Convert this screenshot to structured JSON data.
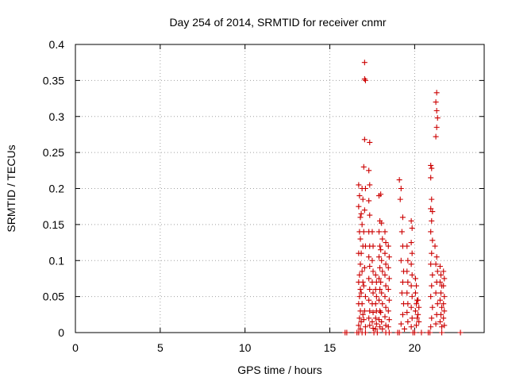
{
  "chart_data": {
    "type": "scatter",
    "title": "Day 254 of 2014, SRMTID for receiver cnmr",
    "xlabel": "GPS time / hours",
    "ylabel": "SRMTID / TECUs",
    "xlim": [
      0,
      24.1
    ],
    "ylim": [
      0,
      0.4
    ],
    "xticks": [
      0,
      5,
      10,
      15,
      20
    ],
    "xtick_labels": [
      "0",
      "5",
      "10",
      "15",
      "20"
    ],
    "yticks": [
      0,
      0.05,
      0.1,
      0.15,
      0.2,
      0.25,
      0.3,
      0.35,
      0.4
    ],
    "ytick_labels": [
      "0",
      "0.05",
      "0.1",
      "0.15",
      "0.2",
      "0.25",
      "0.3",
      "0.35",
      "0.4"
    ],
    "grid": true,
    "legend": "none",
    "marker": "plus",
    "series": [
      {
        "color": "#cc0000",
        "points": [
          [
            15.9,
            0.0
          ],
          [
            16.0,
            0.0
          ],
          [
            16.6,
            0.0
          ],
          [
            16.7,
            0.0
          ],
          [
            16.9,
            0.0
          ],
          [
            17.1,
            0.0
          ],
          [
            17.6,
            0.0
          ],
          [
            17.8,
            0.0
          ],
          [
            18.3,
            0.0
          ],
          [
            18.5,
            0.0
          ],
          [
            19.0,
            0.0
          ],
          [
            19.1,
            0.0
          ],
          [
            19.9,
            0.0
          ],
          [
            20.0,
            0.0
          ],
          [
            20.4,
            0.0
          ],
          [
            20.8,
            0.0
          ],
          [
            20.9,
            0.0
          ],
          [
            21.6,
            0.0
          ],
          [
            22.7,
            0.0
          ],
          [
            16.7,
            0.205
          ],
          [
            16.75,
            0.19
          ],
          [
            16.7,
            0.175
          ],
          [
            16.8,
            0.16
          ],
          [
            16.75,
            0.14
          ],
          [
            16.8,
            0.13
          ],
          [
            16.7,
            0.11
          ],
          [
            16.8,
            0.095
          ],
          [
            16.75,
            0.08
          ],
          [
            16.7,
            0.07
          ],
          [
            16.8,
            0.06
          ],
          [
            16.75,
            0.05
          ],
          [
            16.7,
            0.04
          ],
          [
            16.8,
            0.03
          ],
          [
            16.75,
            0.02
          ],
          [
            16.7,
            0.01
          ],
          [
            16.8,
            0.005
          ],
          [
            16.9,
            0.2
          ],
          [
            16.95,
            0.185
          ],
          [
            16.85,
            0.165
          ],
          [
            16.9,
            0.15
          ],
          [
            16.95,
            0.12
          ],
          [
            16.85,
            0.11
          ],
          [
            16.9,
            0.085
          ],
          [
            16.95,
            0.07
          ],
          [
            16.85,
            0.055
          ],
          [
            16.9,
            0.04
          ],
          [
            16.95,
            0.025
          ],
          [
            16.85,
            0.015
          ],
          [
            17.05,
            0.375
          ],
          [
            17.05,
            0.352
          ],
          [
            17.1,
            0.35
          ],
          [
            17.05,
            0.268
          ],
          [
            17.0,
            0.23
          ],
          [
            17.1,
            0.2
          ],
          [
            17.05,
            0.17
          ],
          [
            17.0,
            0.14
          ],
          [
            17.1,
            0.12
          ],
          [
            17.05,
            0.09
          ],
          [
            17.0,
            0.065
          ],
          [
            17.1,
            0.05
          ],
          [
            17.05,
            0.03
          ],
          [
            17.0,
            0.018
          ],
          [
            17.1,
            0.008
          ],
          [
            17.35,
            0.264
          ],
          [
            17.3,
            0.225
          ],
          [
            17.35,
            0.205
          ],
          [
            17.3,
            0.183
          ],
          [
            17.35,
            0.163
          ],
          [
            17.3,
            0.14
          ],
          [
            17.35,
            0.12
          ],
          [
            17.3,
            0.105
          ],
          [
            17.35,
            0.092
          ],
          [
            17.3,
            0.075
          ],
          [
            17.35,
            0.06
          ],
          [
            17.3,
            0.045
          ],
          [
            17.35,
            0.03
          ],
          [
            17.3,
            0.02
          ],
          [
            17.35,
            0.01
          ],
          [
            17.5,
            0.14
          ],
          [
            17.55,
            0.12
          ],
          [
            17.5,
            0.1
          ],
          [
            17.55,
            0.085
          ],
          [
            17.5,
            0.07
          ],
          [
            17.55,
            0.055
          ],
          [
            17.5,
            0.04
          ],
          [
            17.55,
            0.028
          ],
          [
            17.5,
            0.015
          ],
          [
            17.55,
            0.006
          ],
          [
            17.7,
            0.08
          ],
          [
            17.75,
            0.07
          ],
          [
            17.7,
            0.06
          ],
          [
            17.75,
            0.05
          ],
          [
            17.7,
            0.04
          ],
          [
            17.75,
            0.03
          ],
          [
            17.7,
            0.02
          ],
          [
            17.75,
            0.012
          ],
          [
            17.7,
            0.005
          ],
          [
            17.9,
            0.19
          ],
          [
            17.95,
            0.155
          ],
          [
            17.9,
            0.14
          ],
          [
            17.95,
            0.12
          ],
          [
            17.9,
            0.105
          ],
          [
            17.95,
            0.09
          ],
          [
            17.9,
            0.075
          ],
          [
            17.95,
            0.06
          ],
          [
            17.9,
            0.045
          ],
          [
            17.95,
            0.03
          ],
          [
            17.9,
            0.018
          ],
          [
            17.95,
            0.008
          ],
          [
            18.0,
            0.192
          ],
          [
            18.05,
            0.152
          ],
          [
            18.1,
            0.13
          ],
          [
            18.0,
            0.115
          ],
          [
            18.05,
            0.1
          ],
          [
            18.1,
            0.085
          ],
          [
            18.0,
            0.07
          ],
          [
            18.05,
            0.055
          ],
          [
            18.1,
            0.04
          ],
          [
            18.0,
            0.028
          ],
          [
            18.05,
            0.015
          ],
          [
            18.1,
            0.005
          ],
          [
            18.25,
            0.14
          ],
          [
            18.3,
            0.125
          ],
          [
            18.25,
            0.11
          ],
          [
            18.3,
            0.095
          ],
          [
            18.25,
            0.08
          ],
          [
            18.3,
            0.065
          ],
          [
            18.25,
            0.05
          ],
          [
            18.3,
            0.035
          ],
          [
            18.25,
            0.022
          ],
          [
            18.3,
            0.01
          ],
          [
            18.45,
            0.12
          ],
          [
            18.5,
            0.105
          ],
          [
            18.45,
            0.09
          ],
          [
            18.5,
            0.075
          ],
          [
            18.45,
            0.06
          ],
          [
            18.5,
            0.045
          ],
          [
            18.45,
            0.03
          ],
          [
            18.5,
            0.018
          ],
          [
            18.45,
            0.008
          ],
          [
            19.1,
            0.212
          ],
          [
            19.2,
            0.2
          ],
          [
            19.15,
            0.185
          ],
          [
            19.3,
            0.16
          ],
          [
            19.25,
            0.14
          ],
          [
            19.3,
            0.12
          ],
          [
            19.2,
            0.1
          ],
          [
            19.35,
            0.085
          ],
          [
            19.3,
            0.07
          ],
          [
            19.25,
            0.055
          ],
          [
            19.35,
            0.04
          ],
          [
            19.3,
            0.025
          ],
          [
            19.2,
            0.012
          ],
          [
            19.4,
            0.005
          ],
          [
            19.55,
            0.12
          ],
          [
            19.6,
            0.1
          ],
          [
            19.55,
            0.085
          ],
          [
            19.6,
            0.07
          ],
          [
            19.55,
            0.055
          ],
          [
            19.6,
            0.04
          ],
          [
            19.55,
            0.028
          ],
          [
            19.6,
            0.015
          ],
          [
            19.8,
            0.155
          ],
          [
            19.85,
            0.145
          ],
          [
            19.8,
            0.125
          ],
          [
            19.85,
            0.11
          ],
          [
            19.8,
            0.095
          ],
          [
            19.85,
            0.08
          ],
          [
            19.8,
            0.065
          ],
          [
            19.85,
            0.05
          ],
          [
            19.8,
            0.035
          ],
          [
            19.85,
            0.02
          ],
          [
            19.8,
            0.008
          ],
          [
            20.05,
            0.075
          ],
          [
            20.1,
            0.065
          ],
          [
            20.05,
            0.055
          ],
          [
            20.15,
            0.045
          ],
          [
            20.1,
            0.04
          ],
          [
            20.05,
            0.03
          ],
          [
            20.15,
            0.02
          ],
          [
            20.1,
            0.01
          ],
          [
            20.2,
            0.045
          ],
          [
            20.25,
            0.035
          ],
          [
            20.2,
            0.025
          ],
          [
            20.25,
            0.015
          ],
          [
            20.95,
            0.232
          ],
          [
            21.0,
            0.228
          ],
          [
            20.95,
            0.215
          ],
          [
            21.0,
            0.185
          ],
          [
            20.95,
            0.172
          ],
          [
            21.05,
            0.168
          ],
          [
            21.0,
            0.155
          ],
          [
            20.95,
            0.14
          ],
          [
            21.05,
            0.128
          ],
          [
            21.0,
            0.11
          ],
          [
            20.95,
            0.095
          ],
          [
            21.05,
            0.08
          ],
          [
            21.0,
            0.065
          ],
          [
            20.95,
            0.05
          ],
          [
            21.05,
            0.035
          ],
          [
            21.0,
            0.02
          ],
          [
            20.95,
            0.008
          ],
          [
            21.3,
            0.333
          ],
          [
            21.25,
            0.32
          ],
          [
            21.3,
            0.308
          ],
          [
            21.35,
            0.298
          ],
          [
            21.3,
            0.285
          ],
          [
            21.25,
            0.272
          ],
          [
            21.2,
            0.12
          ],
          [
            21.3,
            0.105
          ],
          [
            21.25,
            0.095
          ],
          [
            21.35,
            0.085
          ],
          [
            21.3,
            0.07
          ],
          [
            21.25,
            0.055
          ],
          [
            21.35,
            0.04
          ],
          [
            21.3,
            0.025
          ],
          [
            21.25,
            0.012
          ],
          [
            21.5,
            0.092
          ],
          [
            21.55,
            0.08
          ],
          [
            21.5,
            0.07
          ],
          [
            21.6,
            0.065
          ],
          [
            21.55,
            0.055
          ],
          [
            21.5,
            0.045
          ],
          [
            21.6,
            0.035
          ],
          [
            21.55,
            0.025
          ],
          [
            21.5,
            0.015
          ],
          [
            21.6,
            0.008
          ],
          [
            21.7,
            0.085
          ],
          [
            21.75,
            0.075
          ],
          [
            21.7,
            0.065
          ],
          [
            21.75,
            0.05
          ],
          [
            21.7,
            0.04
          ],
          [
            21.75,
            0.03
          ],
          [
            21.7,
            0.02
          ],
          [
            21.75,
            0.01
          ]
        ]
      }
    ]
  }
}
